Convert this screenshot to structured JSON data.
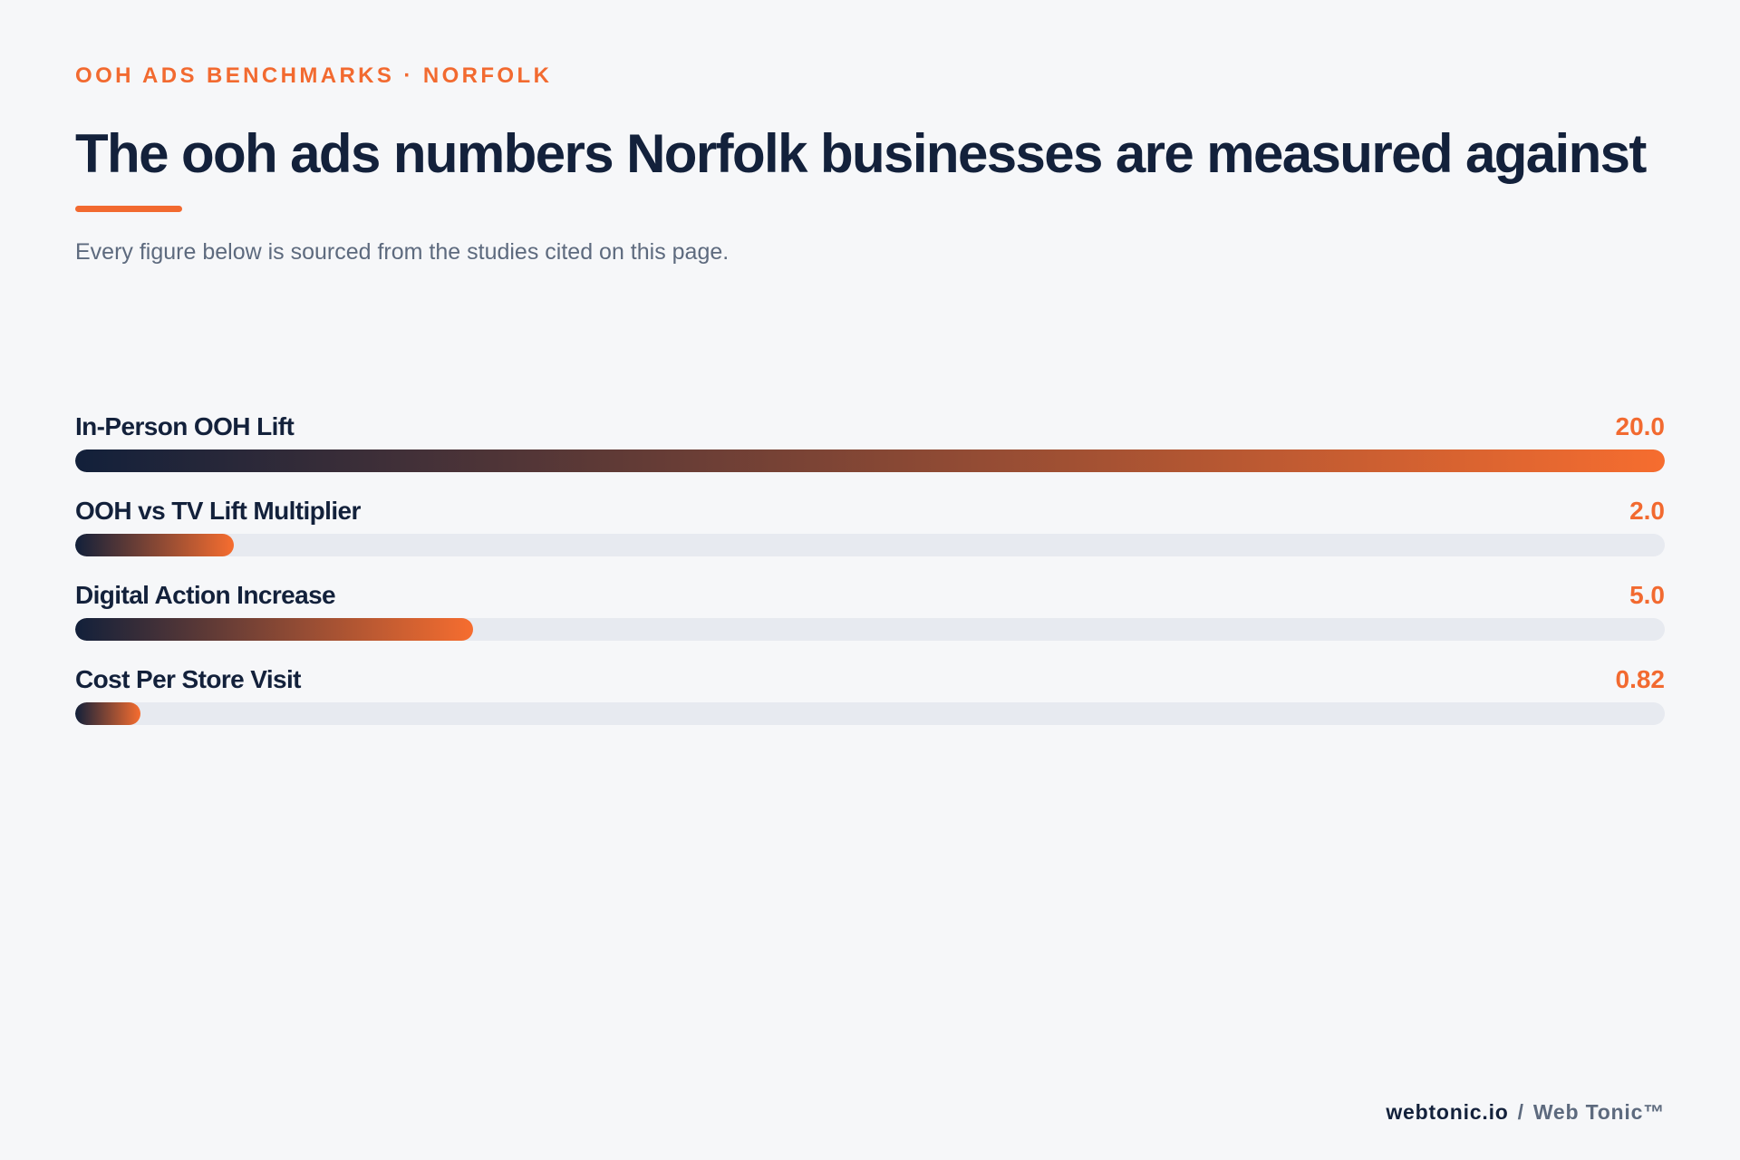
{
  "header": {
    "eyebrow": "OOH ADS BENCHMARKS · NORFOLK",
    "title": "The ooh ads numbers Norfolk businesses are measured against",
    "subtitle": "Every figure below is sourced from the studies cited on this page."
  },
  "colors": {
    "accent": "#f26a30",
    "navy": "#13213b",
    "muted": "#5d6a7e",
    "track": "#e7eaf0",
    "background": "#f6f7f9"
  },
  "chart_data": {
    "type": "bar",
    "orientation": "horizontal",
    "categories": [
      "In-Person OOH Lift",
      "OOH vs TV Lift Multiplier",
      "Digital Action Increase",
      "Cost Per Store Visit"
    ],
    "values": [
      20.0,
      2.0,
      5.0,
      0.82
    ],
    "value_labels": [
      "20.0",
      "2.0",
      "5.0",
      "0.82"
    ],
    "xlim": [
      0,
      20
    ],
    "title": "",
    "xlabel": "",
    "ylabel": "",
    "grid": false,
    "legend": "none"
  },
  "footer": {
    "site": "webtonic.io",
    "separator": "/",
    "brand": "Web Tonic™"
  }
}
